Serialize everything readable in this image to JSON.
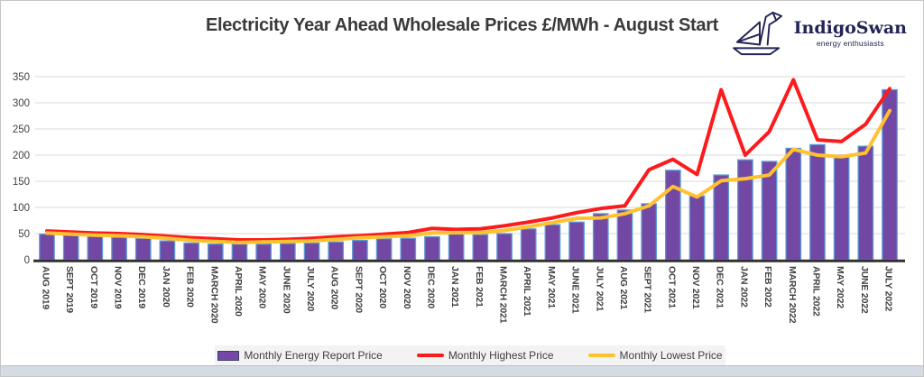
{
  "title": "Electricity Year Ahead Wholesale Prices £/MWh - August Start",
  "logo": {
    "name": "IndigoSwan",
    "tagline": "energy enthusiasts",
    "color": "#232355"
  },
  "chart_data": {
    "type": "bar",
    "subtype": "bar-with-overlaid-lines",
    "title": "Electricity Year Ahead Wholesale Prices £/MWh - August Start",
    "xlabel": "",
    "ylabel": "",
    "ylim": [
      0,
      350
    ],
    "yticks": [
      0,
      50,
      100,
      150,
      200,
      250,
      300,
      350
    ],
    "grid": "horizontal",
    "legend_position": "bottom",
    "categories": [
      "AUG 2019",
      "SEPT 2019",
      "OCT 2019",
      "NOV 2019",
      "DEC 2019",
      "JAN 2020",
      "FEB 2020",
      "MARCH 2020",
      "APRIL 2020",
      "MAY 2020",
      "JUNE 2020",
      "JULY 2020",
      "AUG 2020",
      "SEPT 2020",
      "OCT 2020",
      "NOV 2020",
      "DEC 2020",
      "JAN 2021",
      "FEB 2021",
      "MARCH 2021",
      "APRIL 2021",
      "MAY 2021",
      "JUNE 2021",
      "JULY 2021",
      "AUG 2021",
      "SEPT 2021",
      "OCT 2021",
      "NOV 2021",
      "DEC 2021",
      "JAN 2022",
      "FEB 2022",
      "MARCH 2022",
      "APRIL 2022",
      "MAY 2022",
      "JUNE 2022",
      "JULY 2022"
    ],
    "series": [
      {
        "name": "Monthly Energy Report Price",
        "type": "bar",
        "color": "#7348A5",
        "border_color": "#5B9BD5",
        "values": [
          49,
          47,
          45,
          43,
          41,
          36,
          32,
          30,
          30,
          30,
          31,
          32,
          34,
          37,
          40,
          41,
          44,
          49,
          48,
          50,
          59,
          67,
          72,
          88,
          95,
          107,
          171,
          122,
          162,
          191,
          188,
          213,
          220,
          200,
          217,
          325
        ]
      },
      {
        "name": "Monthly Highest Price",
        "type": "line",
        "color": "#FC1B1C",
        "values": [
          55,
          53,
          51,
          50,
          48,
          45,
          42,
          40,
          38,
          38,
          39,
          41,
          44,
          46,
          49,
          52,
          60,
          58,
          59,
          65,
          72,
          80,
          90,
          98,
          103,
          172,
          192,
          163,
          325,
          200,
          245,
          344,
          229,
          226,
          259,
          327
        ]
      },
      {
        "name": "Monthly Lowest Price",
        "type": "line",
        "color": "#FFC22E",
        "values": [
          51,
          49,
          47,
          46,
          44,
          41,
          37,
          35,
          33,
          34,
          35,
          36,
          39,
          42,
          44,
          46,
          51,
          52,
          52,
          56,
          63,
          71,
          79,
          80,
          88,
          103,
          140,
          120,
          151,
          155,
          162,
          211,
          200,
          197,
          204,
          285
        ]
      }
    ],
    "axis_color": "#303030",
    "grid_color": "#dadada",
    "tick_label_color": "#404040"
  },
  "colors": {
    "title_text": "#3A3A3A",
    "logo_navy": "#232355",
    "legend_background": "#F3F3F3",
    "bottom_strip": "#D5DBE2"
  }
}
